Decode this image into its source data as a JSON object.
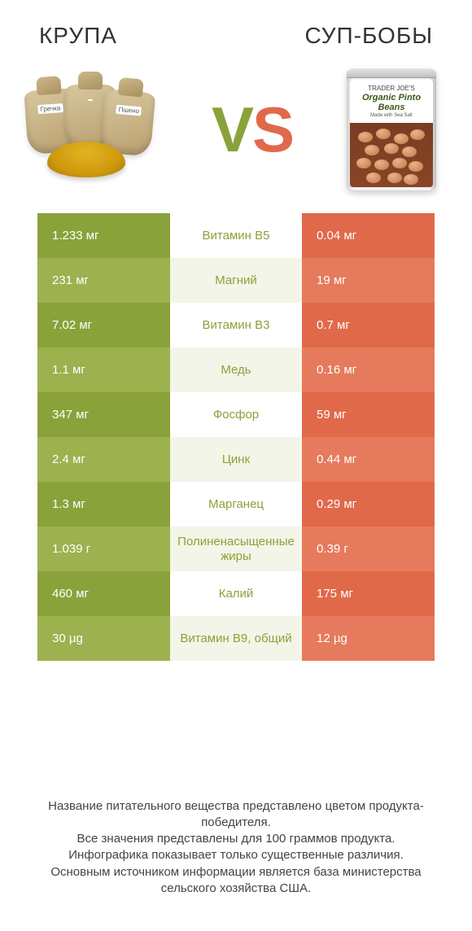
{
  "header": {
    "left": "КРУПА",
    "right": "СУП-БОБЫ"
  },
  "vs": {
    "v": "V",
    "s": "S"
  },
  "can": {
    "brand": "TRADER JOE'S",
    "name": "Organic Pinto Beans",
    "sub": "Made with Sea Salt"
  },
  "bag_tags": [
    "Гречка",
    "",
    "Пшено"
  ],
  "colors": {
    "left_odd": "#8aa23a",
    "left_even": "#9db14e",
    "label": "#8aa23a",
    "right_odd": "#e0694a",
    "right_even": "#e67a5c",
    "mid_odd": "#ffffff",
    "mid_even": "#f3f5e8"
  },
  "rows": [
    {
      "left": "1.233 мг",
      "label": "Витамин B5",
      "right": "0.04 мг"
    },
    {
      "left": "231 мг",
      "label": "Магний",
      "right": "19 мг"
    },
    {
      "left": "7.02 мг",
      "label": "Витамин B3",
      "right": "0.7 мг"
    },
    {
      "left": "1.1 мг",
      "label": "Медь",
      "right": "0.16 мг"
    },
    {
      "left": "347 мг",
      "label": "Фосфор",
      "right": "59 мг"
    },
    {
      "left": "2.4 мг",
      "label": "Цинк",
      "right": "0.44 мг"
    },
    {
      "left": "1.3 мг",
      "label": "Марганец",
      "right": "0.29 мг"
    },
    {
      "left": "1.039 г",
      "label": "Полиненасыщенные жиры",
      "right": "0.39 г"
    },
    {
      "left": "460 мг",
      "label": "Калий",
      "right": "175 мг"
    },
    {
      "left": "30 µg",
      "label": "Витамин B9, общий",
      "right": "12 µg"
    }
  ],
  "footer": {
    "l1": "Название питательного вещества представлено цветом продукта-победителя.",
    "l2": "Все значения представлены для 100 граммов продукта.",
    "l3": "Инфографика показывает только существенные различия.",
    "l4": "Основным источником информации является база министерства сельского хозяйства США."
  }
}
